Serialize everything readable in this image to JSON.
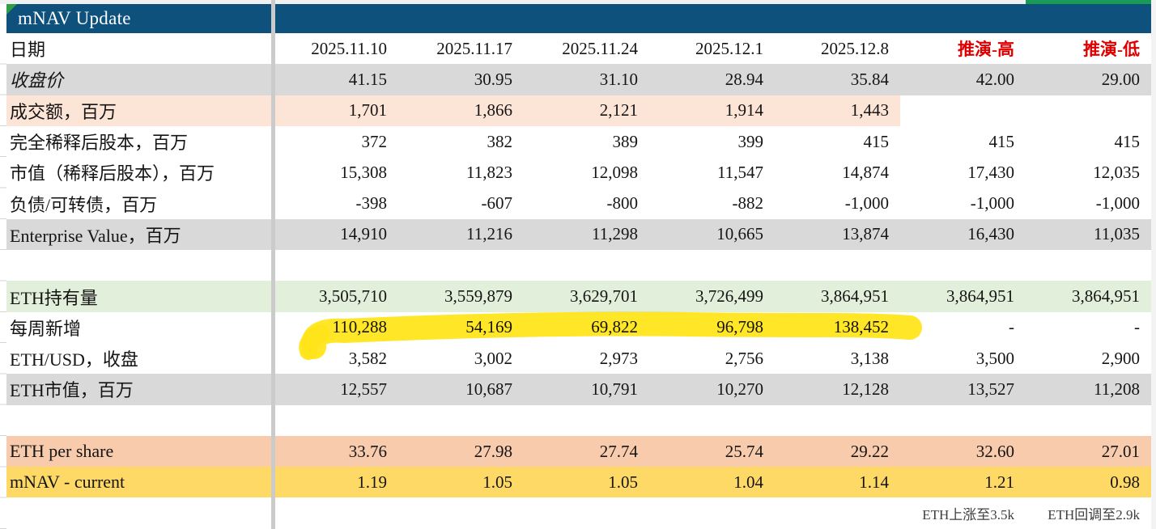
{
  "header": {
    "title": "mNAV Update"
  },
  "columns": {
    "dates": [
      "2025.11.10",
      "2025.11.17",
      "2025.11.24",
      "2025.12.1",
      "2025.12.8"
    ],
    "projection_high_label": "推演-高",
    "projection_low_label": "推演-低"
  },
  "table": {
    "rows": [
      {
        "key": "date",
        "label": "日期",
        "bg": "white",
        "values": [
          "2025.11.10",
          "2025.11.17",
          "2025.11.24",
          "2025.12.1",
          "2025.12.8",
          "推演-高",
          "推演-低"
        ]
      },
      {
        "key": "close-price",
        "label": "收盘价",
        "bg": "gray",
        "italic": true,
        "values": [
          "41.15",
          "30.95",
          "31.10",
          "28.94",
          "35.84",
          "42.00",
          "29.00"
        ]
      },
      {
        "key": "turnover",
        "label": "成交额，百万",
        "bg": "peach",
        "bg_span": 5,
        "values": [
          "1,701",
          "1,866",
          "2,121",
          "1,914",
          "1,443",
          "",
          ""
        ]
      },
      {
        "key": "diluted-shares",
        "label": "完全稀释后股本，百万",
        "bg": "white",
        "values": [
          "372",
          "382",
          "389",
          "399",
          "415",
          "415",
          "415"
        ]
      },
      {
        "key": "market-cap",
        "label": "市值（稀释后股本），百万",
        "bg": "white",
        "values": [
          "15,308",
          "11,823",
          "12,098",
          "11,547",
          "14,874",
          "17,430",
          "12,035"
        ]
      },
      {
        "key": "debt-convertible",
        "label": "负债/可转债，百万",
        "bg": "white",
        "values": [
          "-398",
          "-607",
          "-800",
          "-882",
          "-1,000",
          "-1,000",
          "-1,000"
        ]
      },
      {
        "key": "enterprise-value",
        "label": "Enterprise Value，百万",
        "bg": "gray",
        "values": [
          "14,910",
          "11,216",
          "11,298",
          "10,665",
          "13,874",
          "16,430",
          "11,035"
        ]
      },
      {
        "key": "spacer1",
        "label": "",
        "bg": "white",
        "values": [
          "",
          "",
          "",
          "",
          "",
          "",
          ""
        ]
      },
      {
        "key": "eth-holdings",
        "label": "ETH持有量",
        "bg": "green",
        "values": [
          "3,505,710",
          "3,559,879",
          "3,629,701",
          "3,726,499",
          "3,864,951",
          "3,864,951",
          "3,864,951"
        ]
      },
      {
        "key": "weekly-added",
        "label": "每周新增",
        "bg": "white",
        "highlighted": true,
        "values": [
          "110,288",
          "54,169",
          "69,822",
          "96,798",
          "138,452",
          "-",
          "-"
        ]
      },
      {
        "key": "eth-usd-close",
        "label": "ETH/USD，收盘",
        "bg": "white",
        "values": [
          "3,582",
          "3,002",
          "2,973",
          "2,756",
          "3,138",
          "3,500",
          "2,900"
        ]
      },
      {
        "key": "eth-market-value",
        "label": "ETH市值，百万",
        "bg": "gray",
        "values": [
          "12,557",
          "10,687",
          "10,791",
          "10,270",
          "12,128",
          "13,527",
          "11,208"
        ]
      },
      {
        "key": "spacer2",
        "label": "",
        "bg": "white",
        "values": [
          "",
          "",
          "",
          "",
          "",
          "",
          ""
        ]
      },
      {
        "key": "eth-per-share",
        "label": "ETH per share",
        "bg": "orange",
        "values": [
          "33.76",
          "27.98",
          "27.74",
          "25.74",
          "29.22",
          "32.60",
          "27.01"
        ]
      },
      {
        "key": "mnav-current",
        "label": "mNAV - current",
        "bg": "gold",
        "values": [
          "1.19",
          "1.05",
          "1.05",
          "1.04",
          "1.14",
          "1.21",
          "0.98"
        ]
      },
      {
        "key": "notes",
        "label": "",
        "bg": "white",
        "values": [
          "",
          "",
          "",
          "",
          "",
          "ETH上涨至3.5k",
          "ETH回调至2.9k"
        ]
      }
    ]
  },
  "colors": {
    "header_bar": "#0d517c",
    "top_band_green": "#1a9a56",
    "flag_triangle_green": "#2f9e44",
    "row_gray": "#d9d9d9",
    "row_peach": "#fce4d6",
    "row_green": "#e2efda",
    "row_orange": "#f8cbad",
    "row_gold": "#ffd966",
    "projection_red": "#de0000",
    "highlighter_yellow": "#ffe51a"
  }
}
